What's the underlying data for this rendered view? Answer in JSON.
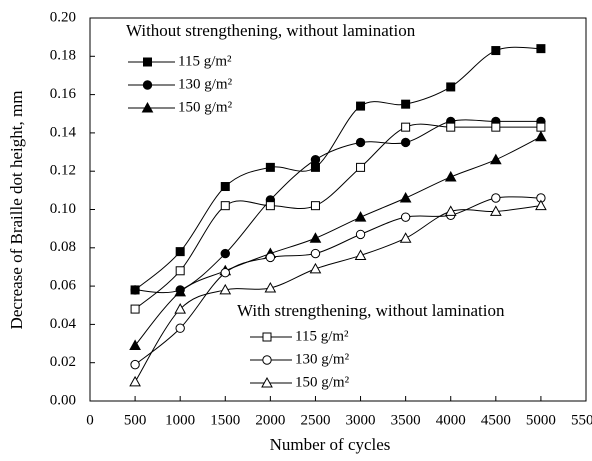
{
  "chart_data": {
    "type": "line",
    "x_label": "Number of cycles",
    "y_label": "Decrease of Braille dot height, mm",
    "x": [
      500,
      1000,
      1500,
      2000,
      2500,
      3000,
      3500,
      4000,
      4500,
      5000
    ],
    "xlim": [
      0,
      5500
    ],
    "xticks": [
      0,
      500,
      1000,
      1500,
      2000,
      2500,
      3000,
      3500,
      4000,
      4500,
      5000,
      5500
    ],
    "ylim": [
      0,
      0.2
    ],
    "yticks": [
      {
        "value": 0,
        "label": "0.00"
      },
      0.02,
      0.04,
      0.06,
      0.08,
      {
        "value": 0.1,
        "label": "0.10"
      },
      0.12,
      0.14,
      0.16,
      0.18,
      {
        "value": 0.2,
        "label": "0.20"
      }
    ],
    "legend_titles": [
      "Without strengthening, without lamination",
      "With strengthening, without lamination"
    ],
    "series": [
      {
        "name": "115 g/m²",
        "color": "#000000",
        "marker": "square",
        "filled": true,
        "values": [
          0.058,
          0.078,
          0.112,
          0.122,
          0.122,
          0.154,
          0.155,
          0.164,
          0.183,
          0.184
        ]
      },
      {
        "name": "130 g/m²",
        "color": "#000000",
        "marker": "circle",
        "filled": true,
        "values": [
          0.058,
          0.058,
          0.077,
          0.105,
          0.126,
          0.135,
          0.135,
          0.146,
          0.146,
          0.146
        ]
      },
      {
        "name": "150 g/m²",
        "color": "#000000",
        "marker": "triangle",
        "filled": true,
        "values": [
          0.029,
          0.057,
          0.068,
          0.077,
          0.085,
          0.096,
          0.106,
          0.117,
          0.126,
          0.138
        ]
      },
      {
        "name": "115 g/m²",
        "color": "#000000",
        "marker": "square",
        "filled": false,
        "values": [
          0.048,
          0.068,
          0.102,
          0.102,
          0.102,
          0.122,
          0.143,
          0.143,
          0.143,
          0.143
        ]
      },
      {
        "name": "130 g/m²",
        "color": "#000000",
        "marker": "circle",
        "filled": false,
        "values": [
          0.019,
          0.038,
          0.067,
          0.075,
          0.077,
          0.087,
          0.096,
          0.097,
          0.106,
          0.106
        ]
      },
      {
        "name": "150 g/m²",
        "color": "#000000",
        "marker": "triangle",
        "filled": false,
        "values": [
          0.01,
          0.048,
          0.058,
          0.059,
          0.069,
          0.076,
          0.085,
          0.099,
          0.099,
          0.102
        ]
      }
    ]
  }
}
